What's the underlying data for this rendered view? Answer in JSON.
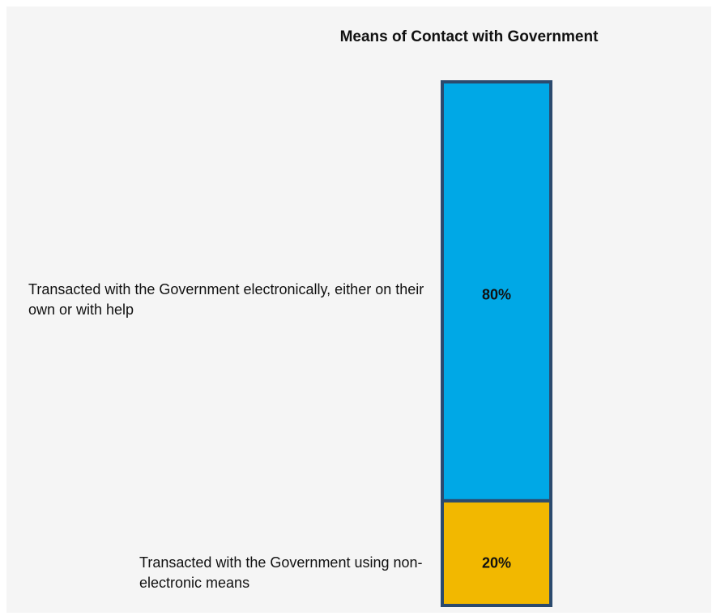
{
  "chart_data": {
    "type": "bar",
    "stacked": true,
    "orientation": "vertical",
    "title": "Means of Contact with Government",
    "xlabel": "",
    "ylabel": "",
    "ylim": [
      0,
      100
    ],
    "grid": false,
    "legend": "none",
    "series": [
      {
        "category": "Transacted with the Government using non-electronic means",
        "value": 20,
        "label": "20%",
        "color": "#f2b800"
      },
      {
        "category": "Transacted with the Government electronically, either on their own or with help",
        "value": 80,
        "label": "80%",
        "color": "#00a8e6"
      }
    ]
  }
}
